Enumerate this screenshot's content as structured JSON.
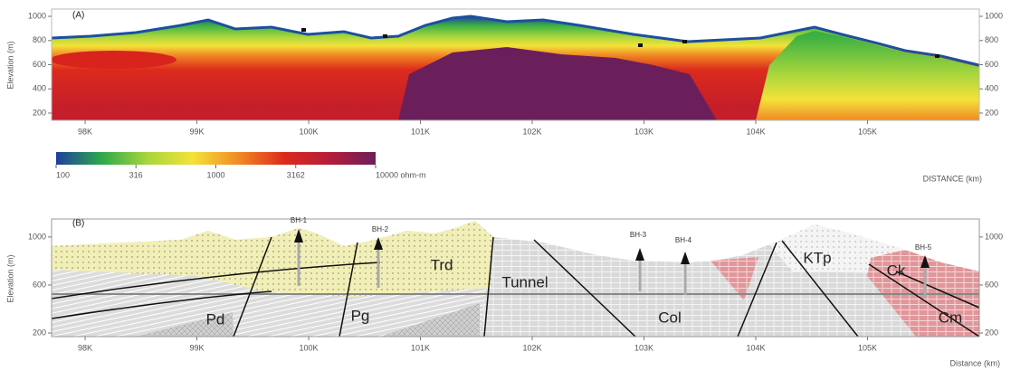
{
  "chart_data": [
    {
      "type": "heatmap",
      "panel_label": "(A)",
      "ylabel": "Elevation (m)",
      "xlabel": "DISTANCE (km)",
      "xlim": [
        97.7,
        106.0
      ],
      "xticks": [
        {
          "value": 98,
          "label": "98K"
        },
        {
          "value": 99,
          "label": "99K"
        },
        {
          "value": 100,
          "label": "100K"
        },
        {
          "value": 101,
          "label": "101K"
        },
        {
          "value": 102,
          "label": "102K"
        },
        {
          "value": 103,
          "label": "103K"
        },
        {
          "value": 104,
          "label": "104K"
        },
        {
          "value": 105,
          "label": "105K"
        }
      ],
      "ylim": [
        140,
        1060
      ],
      "yticks": [
        200,
        400,
        600,
        800,
        1000
      ],
      "colorbar": {
        "log": true,
        "lim": [
          100,
          10000
        ],
        "colors": [
          "#1d3f9e",
          "#2fa84a",
          "#a8d63c",
          "#f4e23a",
          "#f08a24",
          "#dc2a1d",
          "#b41d3a",
          "#6b1f5a"
        ],
        "ticks": [
          100,
          316,
          1000,
          3162,
          {
            "value": 10000,
            "label": "10000 ohm-m"
          }
        ]
      }
    },
    {
      "type": "cross-section",
      "panel_label": "(B)",
      "ylabel": "Elevation (m)",
      "xlabel": "Distance (km)",
      "xlim": [
        97.7,
        106.0
      ],
      "xticks": [
        {
          "value": 98,
          "label": "98K"
        },
        {
          "value": 99,
          "label": "99K"
        },
        {
          "value": 100,
          "label": "100K"
        },
        {
          "value": 101,
          "label": "101K"
        },
        {
          "value": 102,
          "label": "102K"
        },
        {
          "value": 103,
          "label": "103K"
        },
        {
          "value": 104,
          "label": "104K"
        },
        {
          "value": 105,
          "label": "105K"
        }
      ],
      "ylim": [
        170,
        1150
      ],
      "yticks": [
        200,
        600,
        1000
      ],
      "annotations": [
        "BH-1",
        "BH-2",
        "BH-3",
        "BH-4",
        "BH-5",
        "Trd",
        "Tunnel",
        "Pd",
        "Pg",
        "Col",
        "KTp",
        "Ck",
        "Cm"
      ]
    }
  ]
}
